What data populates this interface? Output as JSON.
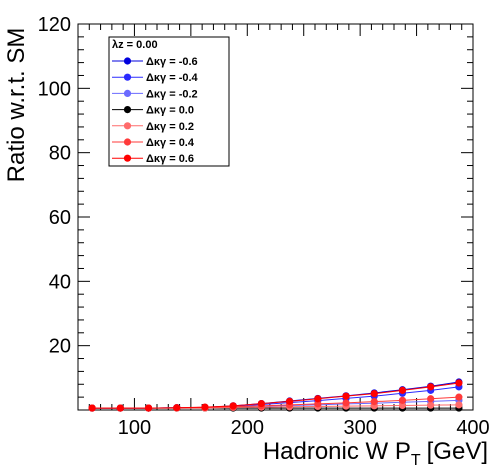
{
  "chart_data": {
    "type": "line",
    "title": "",
    "xlabel": "Hadronic W P",
    "xlabel_subscript": "T",
    "xlabel_unit": "[GeV]",
    "ylabel": "Ratio w.r.t. SM",
    "xlim": [
      50,
      400
    ],
    "ylim": [
      0,
      120
    ],
    "x_ticks": [
      100,
      200,
      300,
      400
    ],
    "y_ticks": [
      20,
      40,
      60,
      80,
      100,
      120
    ],
    "grid": false,
    "legend_position": "top-left",
    "legend_header": "λz = 0.00",
    "x": [
      62.5,
      87.5,
      112.5,
      137.5,
      162.5,
      187.5,
      212.5,
      237.5,
      262.5,
      287.5,
      312.5,
      337.5,
      362.5,
      387.5
    ],
    "series": [
      {
        "name": "Δκγ = -0.6",
        "color": "#0000dd",
        "values": [
          0.6,
          0.6,
          0.6,
          0.7,
          0.8,
          1.3,
          2.0,
          2.8,
          3.6,
          4.4,
          5.3,
          6.3,
          7.4,
          8.7
        ]
      },
      {
        "name": "Δκγ = -0.4",
        "color": "#2b2bff",
        "values": [
          0.6,
          0.6,
          0.6,
          0.7,
          0.8,
          1.2,
          1.7,
          2.3,
          2.9,
          3.6,
          4.3,
          5.2,
          6.1,
          7.2
        ]
      },
      {
        "name": "Δκγ = -0.2",
        "color": "#6a6aff",
        "values": [
          0.6,
          0.6,
          0.6,
          0.7,
          0.8,
          1.0,
          1.2,
          1.4,
          1.6,
          1.9,
          2.1,
          2.4,
          2.7,
          3.0
        ]
      },
      {
        "name": "Δκγ = 0.0",
        "color": "#000000",
        "values": [
          0.6,
          0.6,
          0.6,
          0.6,
          0.6,
          0.6,
          0.6,
          0.6,
          0.6,
          0.6,
          0.6,
          0.6,
          0.6,
          0.6
        ]
      },
      {
        "name": "Δκγ = 0.2",
        "color": "#ff6b6b",
        "values": [
          0.6,
          0.6,
          0.6,
          0.6,
          0.6,
          0.8,
          0.9,
          1.0,
          1.1,
          1.2,
          1.3,
          1.4,
          1.5,
          1.6
        ]
      },
      {
        "name": "Δκγ = 0.4",
        "color": "#ff3a3a",
        "values": [
          0.6,
          0.6,
          0.6,
          0.7,
          0.8,
          1.0,
          1.3,
          1.6,
          1.9,
          2.2,
          2.6,
          3.0,
          3.5,
          4.0
        ]
      },
      {
        "name": "Δκγ = 0.6",
        "color": "#ff0000",
        "values": [
          0.6,
          0.6,
          0.6,
          0.7,
          0.9,
          1.3,
          2.0,
          2.7,
          3.5,
          4.3,
          5.1,
          6.1,
          7.2,
          8.4
        ]
      }
    ]
  }
}
